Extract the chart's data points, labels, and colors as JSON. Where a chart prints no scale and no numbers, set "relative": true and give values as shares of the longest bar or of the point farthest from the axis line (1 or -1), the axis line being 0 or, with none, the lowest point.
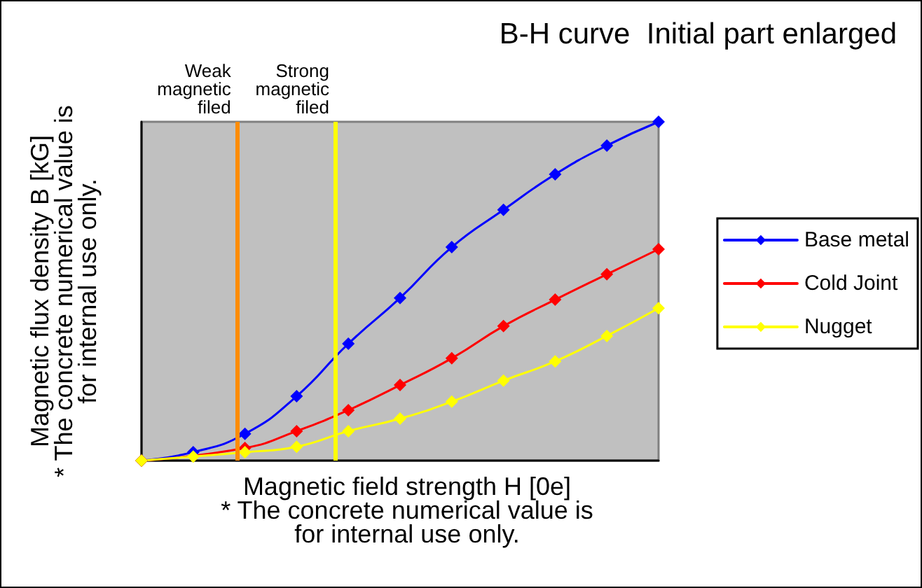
{
  "chart_data": {
    "type": "line",
    "title": "B-H curve  Initial part enlarged",
    "xlabel": "Magnetic field strength H [0e]\n* The concrete numerical value is\nfor internal use only.",
    "ylabel": "Magnetic flux density B [kG]\n* The concrete numerical value is\nfor internal use only.",
    "relative": true,
    "categories": [
      null,
      null,
      null,
      null,
      null,
      null,
      null,
      null,
      null,
      null,
      null
    ],
    "series": [
      {
        "name": "Base metal",
        "color": "#0000ff",
        "values": [
          0,
          0.025,
          0.079,
          0.19,
          0.345,
          0.48,
          0.63,
          0.74,
          0.845,
          0.93,
          1
        ]
      },
      {
        "name": "Cold Joint",
        "color": "#ff0000",
        "values": [
          0,
          null,
          0.037,
          0.087,
          0.149,
          0.223,
          0.302,
          0.397,
          0.475,
          0.55,
          0.624
        ]
      },
      {
        "name": "Nugget",
        "color": "#ffff00",
        "values": [
          0,
          0.012,
          0.025,
          0.041,
          0.087,
          0.124,
          0.174,
          0.236,
          0.293,
          0.368,
          0.45
        ]
      }
    ],
    "annotations": [
      "Weak magnetic filed",
      "Strong magnetic filed"
    ],
    "marker": "diamond",
    "line_style": "solid",
    "legend": "right",
    "grid": false
  }
}
